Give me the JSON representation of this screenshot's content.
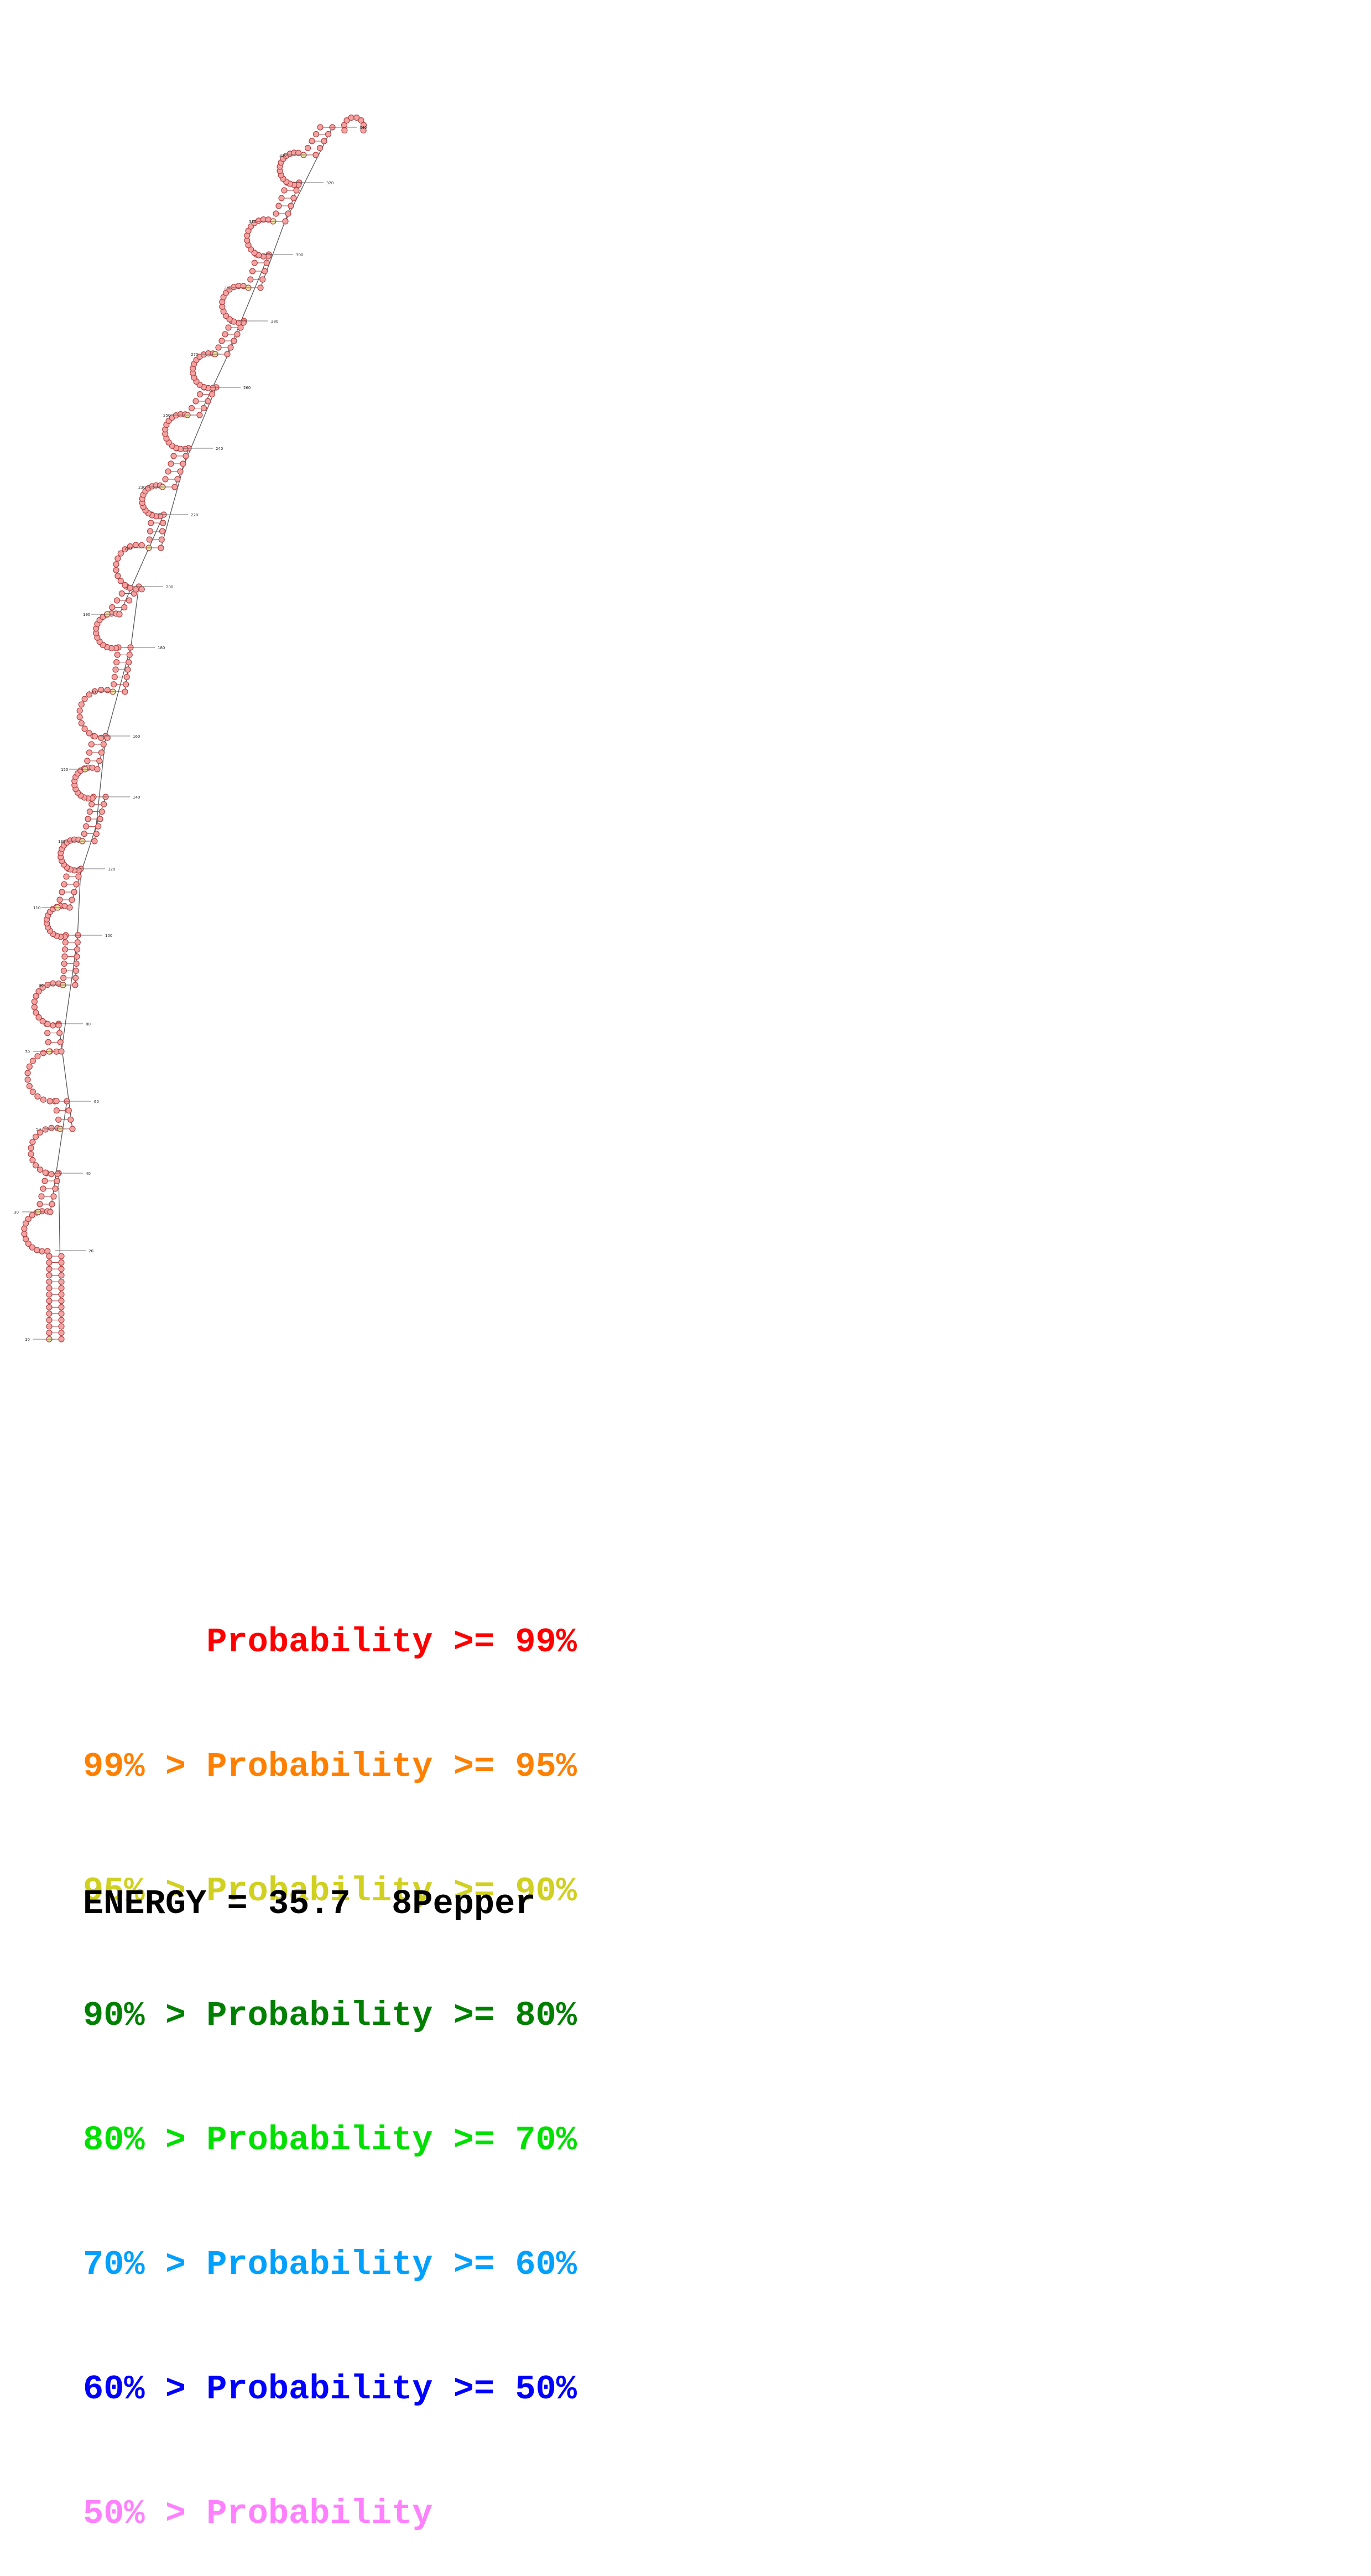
{
  "diagram": {
    "type": "rna-secondary-structure",
    "nucleotide_fill": "#f4a3a3",
    "nucleotide_stroke": "#b04040",
    "low_confidence_fill": "#e8e0a0",
    "backbone_color": "#555555",
    "position_labels": [
      "10",
      "20",
      "30",
      "40",
      "50",
      "60",
      "70",
      "80",
      "90",
      "100",
      "110",
      "120",
      "130",
      "140",
      "150",
      "160",
      "170",
      "180",
      "190",
      "200",
      "210",
      "220",
      "230",
      "240",
      "250",
      "260",
      "270",
      "280",
      "290",
      "300",
      "310",
      "320",
      "330",
      "340"
    ]
  },
  "legend": {
    "rows": [
      {
        "text": "      Probability >= 99%",
        "color": "#ff0000"
      },
      {
        "text": "99% > Probability >= 95%",
        "color": "#ff8000"
      },
      {
        "text": "95% > Probability >= 90%",
        "color": "#d0d020"
      },
      {
        "text": "90% > Probability >= 80%",
        "color": "#008000"
      },
      {
        "text": "80% > Probability >= 70%",
        "color": "#00e000"
      },
      {
        "text": "70% > Probability >= 60%",
        "color": "#00a0ff"
      },
      {
        "text": "60% > Probability >= 50%",
        "color": "#0000ff"
      },
      {
        "text": "50% > Probability",
        "color": "#ff80ff"
      }
    ]
  },
  "energy_line": "ENERGY = 35.7  8Pepper"
}
